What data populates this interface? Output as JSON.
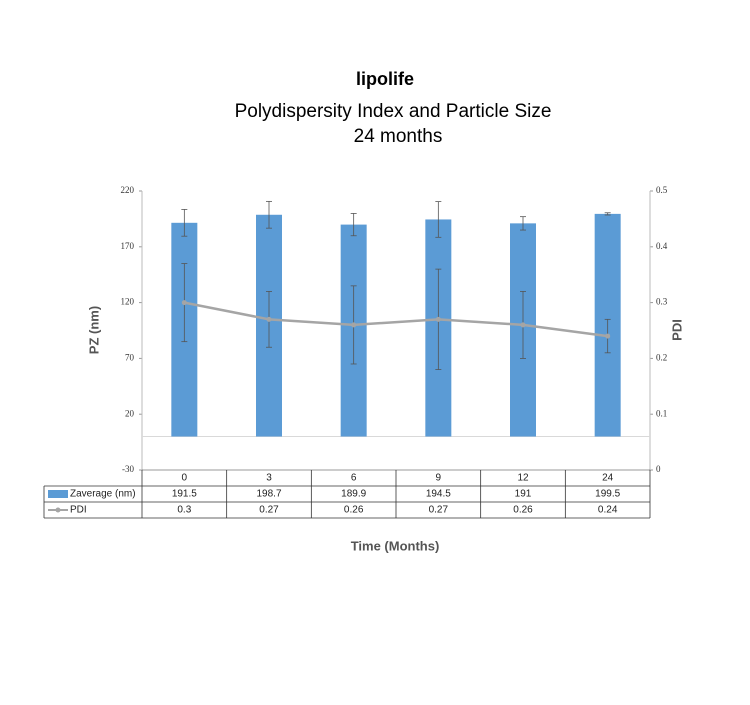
{
  "chart_data": {
    "type": "bar",
    "brand": "lipolife",
    "title": "Polydispersity Index and Particle Size",
    "subtitle": "24 months",
    "categories": [
      "0",
      "3",
      "6",
      "9",
      "12",
      "24"
    ],
    "series": [
      {
        "name": "Zaverage (nm)",
        "type": "bar",
        "color": "#5b9bd5",
        "values": [
          191.5,
          198.7,
          189.9,
          194.5,
          191,
          199.5
        ],
        "errors": [
          12,
          12,
          10,
          16,
          6,
          1
        ]
      },
      {
        "name": "PDI",
        "type": "line",
        "axis": "y2",
        "color": "#a5a5a5",
        "values": [
          0.3,
          0.27,
          0.26,
          0.27,
          0.26,
          0.24
        ],
        "errors": [
          0.07,
          0.05,
          0.07,
          0.09,
          0.06,
          0.03
        ]
      }
    ],
    "ylabel": "PZ (nm)",
    "y2label": "PDI",
    "xlabel": "Time (Months)",
    "ylim": [
      -30,
      220
    ],
    "yticks": [
      -30,
      20,
      70,
      120,
      170,
      220
    ],
    "y2lim": [
      0,
      0.5
    ],
    "y2ticks": [
      0,
      0.1,
      0.2,
      0.3,
      0.4,
      0.5
    ]
  }
}
